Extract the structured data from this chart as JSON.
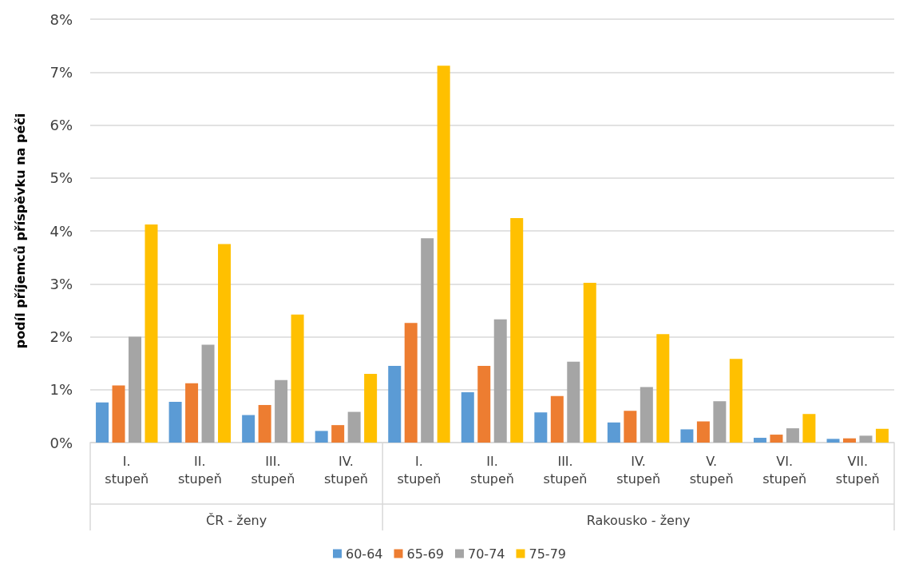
{
  "chart_data": {
    "type": "bar",
    "ylabel": "podíl příjemců příspěvku na péči",
    "categories": [
      "I. stupeň",
      "II. stupeň",
      "III. stupeň",
      "IV. stupeň",
      "I. stupeň",
      "II. stupeň",
      "III. stupeň",
      "IV. stupeň",
      "V. stupeň",
      "VI. stupeň",
      "VII. stupeň"
    ],
    "annotations": [
      "ČR - ženy",
      "Rakousko - ženy"
    ],
    "series": [
      {
        "name": "60-64",
        "color": "#5b9bd5",
        "values": [
          0.76,
          0.77,
          0.52,
          0.22,
          1.45,
          0.95,
          0.57,
          0.38,
          0.25,
          0.09,
          0.07
        ]
      },
      {
        "name": "65-69",
        "color": "#ed7d31",
        "values": [
          1.08,
          1.12,
          0.71,
          0.33,
          2.26,
          1.45,
          0.88,
          0.6,
          0.4,
          0.15,
          0.08
        ]
      },
      {
        "name": "70-74",
        "color": "#a5a5a5",
        "values": [
          2.0,
          1.85,
          1.18,
          0.58,
          3.86,
          2.33,
          1.53,
          1.05,
          0.78,
          0.27,
          0.13
        ]
      },
      {
        "name": "75-79",
        "color": "#ffc000",
        "values": [
          4.12,
          3.75,
          2.42,
          1.3,
          7.12,
          4.24,
          3.02,
          2.05,
          1.58,
          0.54,
          0.26
        ]
      }
    ],
    "ylim": [
      0,
      8
    ],
    "yticks": [
      {
        "value": 0,
        "label": "0%"
      },
      {
        "value": 1,
        "label": "1%"
      },
      {
        "value": 2,
        "label": "2%"
      },
      {
        "value": 3,
        "label": "3%"
      },
      {
        "value": 4,
        "label": "4%"
      },
      {
        "value": 5,
        "label": "5%"
      },
      {
        "value": 6,
        "label": "6%"
      },
      {
        "value": 7,
        "label": "7%"
      },
      {
        "value": 8,
        "label": "8%"
      }
    ],
    "grid": "y",
    "legend": "bottom"
  }
}
